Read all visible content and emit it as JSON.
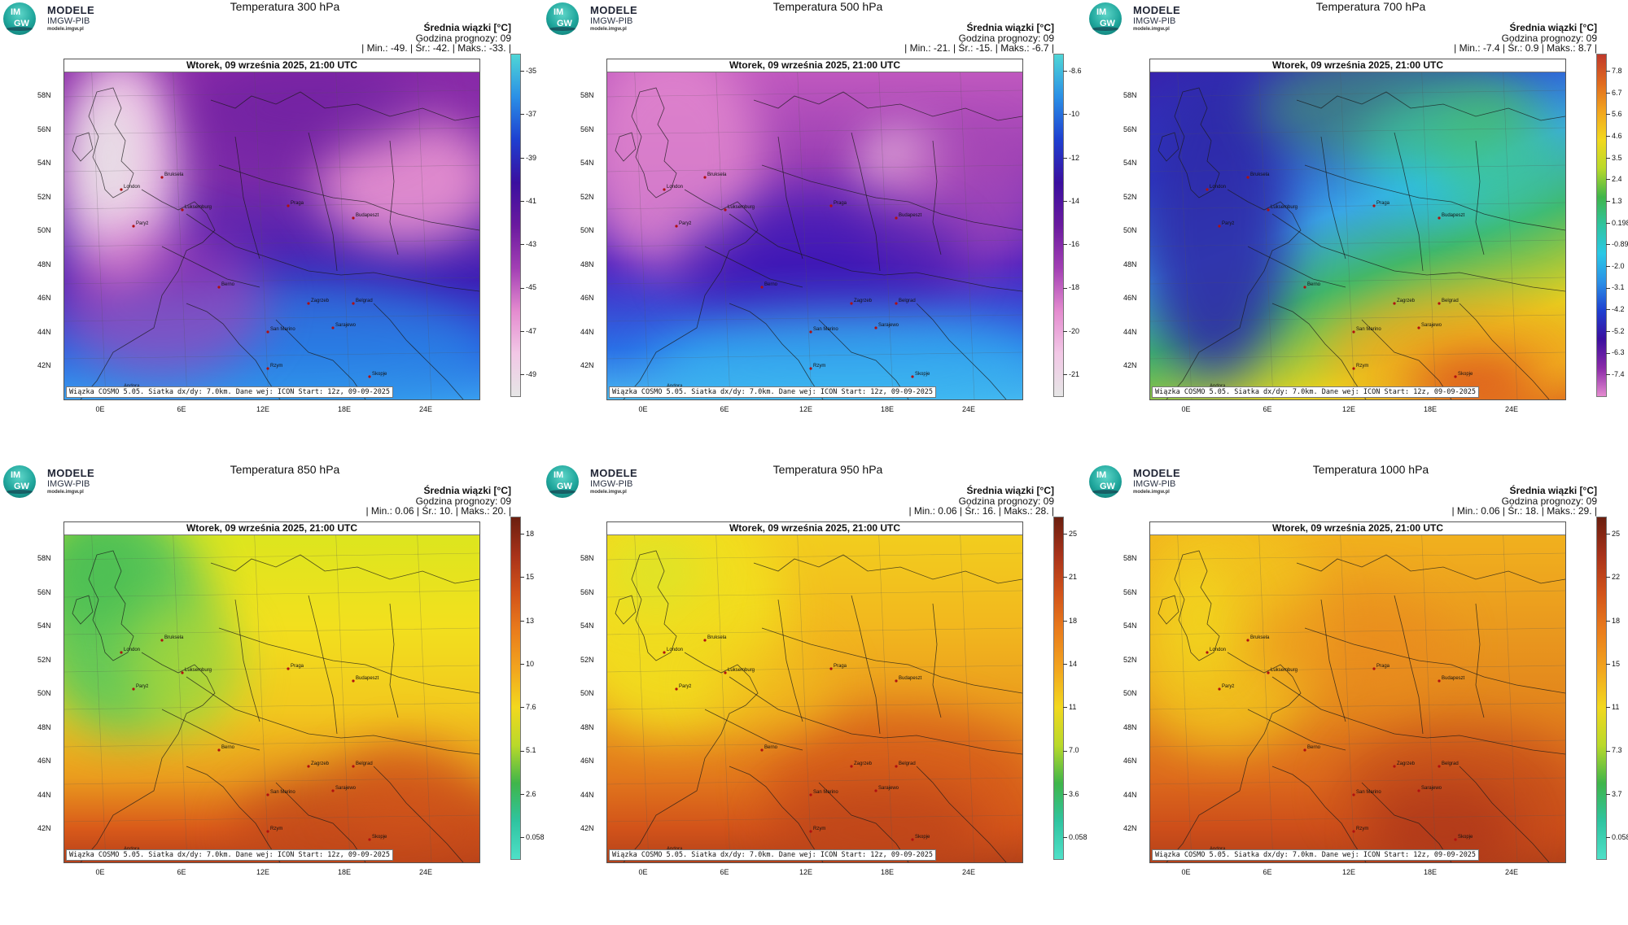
{
  "logo": {
    "brand": "MODELE",
    "org": "IMGW-PIB",
    "url": "modele.imgw.pl",
    "mark_top": "IM",
    "mark_bottom": "GW"
  },
  "panels": [
    {
      "title": "Temperatura 300 hPa",
      "stat_label": "Średnia wiązki [°C]",
      "forecast_hour": "Godzina prognozy: 09",
      "stats": "| Min.:   -49. | Śr.:   -42. | Maks.:   -33. |",
      "date": "Wtorek, 09 września 2025, 21:00 UTC",
      "footer": "Wiązka COSMO 5.05. Siatka dx/dy: 7.0km. Dane wej: ICON Start: 12z, 09-09-2025",
      "colorbar_ticks": [
        "-35",
        "-37",
        "-39",
        "-41",
        "-43",
        "-45",
        "-47",
        "-49"
      ],
      "colorbar_colors": [
        "#4fd6d6",
        "#2a8fe6",
        "#1e3fd0",
        "#3a0f9f",
        "#6a1a9f",
        "#a23fb4",
        "#e48bcf",
        "#f2c8e6",
        "#e6e6e6"
      ]
    },
    {
      "title": "Temperatura 500 hPa",
      "stat_label": "Średnia wiązki [°C]",
      "forecast_hour": "Godzina prognozy: 09",
      "stats": "| Min.:   -21. | Śr.:   -15. | Maks.:   -6.7 |",
      "date": "Wtorek, 09 września 2025, 21:00 UTC",
      "footer": "Wiązka COSMO 5.05. Siatka dx/dy: 7.0km. Dane wej: ICON Start: 12z, 09-09-2025",
      "colorbar_ticks": [
        "-8.6",
        "-10",
        "-12",
        "-14",
        "-16",
        "-18",
        "-20",
        "-21"
      ],
      "colorbar_colors": [
        "#4fd6d6",
        "#2a8fe6",
        "#1e3fd0",
        "#3a0f9f",
        "#6a1a9f",
        "#a23fb4",
        "#e48bcf",
        "#f2c8e6",
        "#e6e6e6"
      ]
    },
    {
      "title": "Temperatura 700 hPa",
      "stat_label": "Średnia wiązki [°C]",
      "forecast_hour": "Godzina prognozy: 09",
      "stats": "| Min.:   -7.4 | Śr.:   0.9 | Maks.:   8.7 |",
      "date": "Wtorek, 09 września 2025, 21:00 UTC",
      "footer": "Wiązka COSMO 5.05. Siatka dx/dy: 7.0km. Dane wej: ICON Start: 12z, 09-09-2025",
      "colorbar_ticks": [
        "7.8",
        "6.7",
        "5.6",
        "4.6",
        "3.5",
        "2.4",
        "1.3",
        "0.198",
        "-0.891",
        "-2.0",
        "-3.1",
        "-4.2",
        "-5.2",
        "-6.3",
        "-7.4"
      ],
      "colorbar_colors": [
        "#c0392b",
        "#e06a1f",
        "#f2a51e",
        "#f2d81e",
        "#b9d92a",
        "#3fb54a",
        "#2fc4a0",
        "#2ac8e6",
        "#2a8fe6",
        "#1e3fd0",
        "#3a0f9f",
        "#8a2aa8",
        "#e48bcf"
      ]
    },
    {
      "title": "Temperatura 850 hPa",
      "stat_label": "Średnia wiązki [°C]",
      "forecast_hour": "Godzina prognozy: 09",
      "stats": "| Min.:   0.06 | Śr.:   10. | Maks.:   20. |",
      "date": "Wtorek, 09 września 2025, 21:00 UTC",
      "footer": "Wiązka COSMO 5.05. Siatka dx/dy: 7.0km. Dane wej: ICON Start: 12z, 09-09-2025",
      "colorbar_ticks": [
        "18",
        "15",
        "13",
        "10",
        "7.6",
        "5.1",
        "2.6",
        "0.058"
      ],
      "colorbar_colors": [
        "#6b1f0f",
        "#a8321a",
        "#d2531a",
        "#ea7d1c",
        "#f2a51e",
        "#f2d81e",
        "#b9d92a",
        "#3fb54a",
        "#2fc4a0",
        "#4fe0c8"
      ]
    },
    {
      "title": "Temperatura 950 hPa",
      "stat_label": "Średnia wiązki [°C]",
      "forecast_hour": "Godzina prognozy: 09",
      "stats": "| Min.:   0.06 | Śr.:   16. | Maks.:   28. |",
      "date": "Wtorek, 09 września 2025, 21:00 UTC",
      "footer": "Wiązka COSMO 5.05. Siatka dx/dy: 7.0km. Dane wej: ICON Start: 12z, 09-09-2025",
      "colorbar_ticks": [
        "25",
        "21",
        "18",
        "14",
        "11",
        "7.0",
        "3.6",
        "0.058"
      ],
      "colorbar_colors": [
        "#6b1f0f",
        "#a8321a",
        "#d2531a",
        "#ea7d1c",
        "#f2a51e",
        "#f2d81e",
        "#b9d92a",
        "#3fb54a",
        "#2fc4a0",
        "#4fe0c8"
      ]
    },
    {
      "title": "Temperatura 1000 hPa",
      "stat_label": "Średnia wiązki [°C]",
      "forecast_hour": "Godzina prognozy: 09",
      "stats": "| Min.:   0.06 | Śr.:   18. | Maks.:   29. |",
      "date": "Wtorek, 09 września 2025, 21:00 UTC",
      "footer": "Wiązka COSMO 5.05. Siatka dx/dy: 7.0km. Dane wej: ICON Start: 12z, 09-09-2025",
      "colorbar_ticks": [
        "25",
        "22",
        "18",
        "15",
        "11",
        "7.3",
        "3.7",
        "0.058"
      ],
      "colorbar_colors": [
        "#6b1f0f",
        "#a8321a",
        "#d2531a",
        "#ea7d1c",
        "#f2a51e",
        "#f2d81e",
        "#b9d92a",
        "#3fb54a",
        "#2fc4a0",
        "#4fe0c8"
      ]
    }
  ],
  "lat_labels": [
    "58N",
    "56N",
    "54N",
    "52N",
    "50N",
    "48N",
    "46N",
    "44N",
    "42N"
  ],
  "lon_labels": [
    "0E",
    "6E",
    "12E",
    "18E",
    "24E"
  ],
  "cities": [
    "London",
    "Bruksela",
    "Paryż",
    "Luksemburg",
    "Praga",
    "Budapeszt",
    "Berno",
    "Zagrzeb",
    "Belgrad",
    "San Marino",
    "Sarajewo",
    "Rzym",
    "Skopje",
    "Andora"
  ]
}
